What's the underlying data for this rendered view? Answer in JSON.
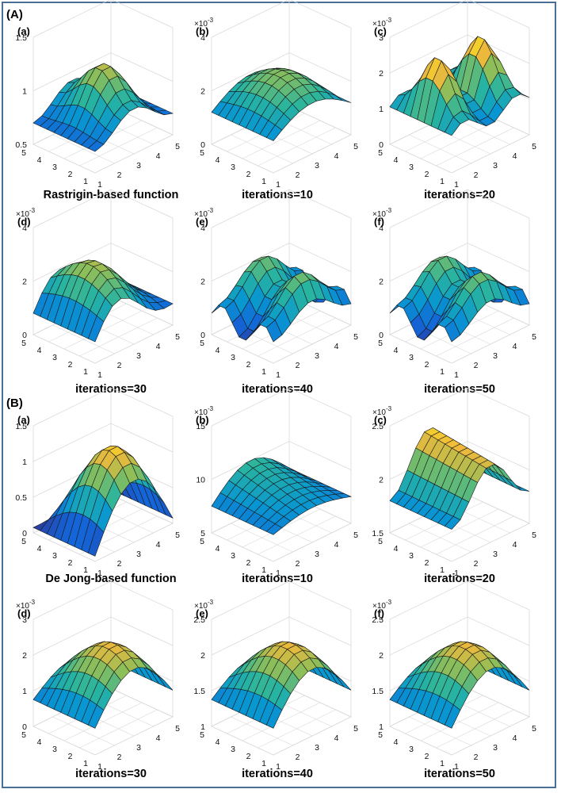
{
  "sections": [
    {
      "label": "(A)",
      "panels": [
        {
          "label": "(a)",
          "caption": "Rastrigin-based  function",
          "exp": null,
          "z_ticks": [
            "0.5",
            "1",
            "1.5"
          ],
          "z_range": [
            0,
            1.5
          ],
          "x_ticks": [
            "1",
            "2",
            "3",
            "4",
            "5"
          ],
          "y_ticks": [
            "1",
            "2",
            "3",
            "4",
            "5"
          ]
        },
        {
          "label": "(b)",
          "caption": "iterations=10",
          "exp": "×10",
          "exp_power": "-3",
          "z_ticks": [
            "0",
            "2",
            "4"
          ],
          "z_range": [
            0,
            4
          ],
          "x_ticks": [
            "1",
            "2",
            "3",
            "4",
            "5"
          ],
          "y_ticks": [
            "1",
            "2",
            "3",
            "4",
            "5"
          ]
        },
        {
          "label": "(c)",
          "caption": "iterations=20",
          "exp": "×10",
          "exp_power": "-3",
          "z_ticks": [
            "0",
            "1",
            "2",
            "3"
          ],
          "z_range": [
            0,
            3
          ],
          "x_ticks": [
            "1",
            "2",
            "3",
            "4",
            "5"
          ],
          "y_ticks": [
            "1",
            "2",
            "3",
            "4",
            "5"
          ]
        },
        {
          "label": "(d)",
          "caption": "iterations=30",
          "exp": "×10",
          "exp_power": "-3",
          "z_ticks": [
            "0",
            "2",
            "4"
          ],
          "z_range": [
            0,
            4
          ],
          "x_ticks": [
            "1",
            "2",
            "3",
            "4",
            "5"
          ],
          "y_ticks": [
            "1",
            "2",
            "3",
            "4",
            "5"
          ]
        },
        {
          "label": "(e)",
          "caption": "iterations=40",
          "exp": "×10",
          "exp_power": "-3",
          "z_ticks": [
            "0",
            "2",
            "4"
          ],
          "z_range": [
            0,
            4
          ],
          "x_ticks": [
            "1",
            "2",
            "3",
            "4",
            "5"
          ],
          "y_ticks": [
            "1",
            "2",
            "3",
            "4",
            "5"
          ]
        },
        {
          "label": "(f)",
          "caption": "iterations=50",
          "exp": "×10",
          "exp_power": "-3",
          "z_ticks": [
            "0",
            "2",
            "4"
          ],
          "z_range": [
            0,
            4
          ],
          "x_ticks": [
            "1",
            "2",
            "3",
            "4",
            "5"
          ],
          "y_ticks": [
            "1",
            "2",
            "3",
            "4",
            "5"
          ]
        }
      ]
    },
    {
      "label": "(B)",
      "panels": [
        {
          "label": "(a)",
          "caption": "De Jong-based  function",
          "exp": null,
          "z_ticks": [
            "0",
            "0.5",
            "1",
            "1.5"
          ],
          "z_range": [
            0,
            1.5
          ],
          "x_ticks": [
            "1",
            "2",
            "3",
            "4",
            "5"
          ],
          "y_ticks": [
            "1",
            "2",
            "3",
            "4",
            "5"
          ]
        },
        {
          "label": "(b)",
          "caption": "iterations=10",
          "exp": "×10",
          "exp_power": "-3",
          "z_ticks": [
            "5",
            "10",
            "15"
          ],
          "z_range": [
            3,
            17
          ],
          "x_ticks": [
            "1",
            "2",
            "3",
            "4",
            "5"
          ],
          "y_ticks": [
            "1",
            "2",
            "3",
            "4",
            "5"
          ]
        },
        {
          "label": "(c)",
          "caption": "iterations=20",
          "exp": "×10",
          "exp_power": "-3",
          "z_ticks": [
            "1.5",
            "2",
            "2.5"
          ],
          "z_range": [
            1.2,
            2.5
          ],
          "x_ticks": [
            "1",
            "2",
            "3",
            "4",
            "5"
          ],
          "y_ticks": [
            "1",
            "2",
            "3",
            "4",
            "5"
          ]
        },
        {
          "label": "(d)",
          "caption": "iterations=30",
          "exp": "×10",
          "exp_power": "-3",
          "z_ticks": [
            "0",
            "1",
            "2",
            "3"
          ],
          "z_range": [
            0,
            3
          ],
          "x_ticks": [
            "1",
            "2",
            "3",
            "4",
            "5"
          ],
          "y_ticks": [
            "1",
            "2",
            "3",
            "4",
            "5"
          ]
        },
        {
          "label": "(e)",
          "caption": "iterations=40",
          "exp": "×10",
          "exp_power": "-3",
          "z_ticks": [
            "1",
            "1.5",
            "2",
            "2.5"
          ],
          "z_range": [
            1,
            2.5
          ],
          "x_ticks": [
            "1",
            "2",
            "3",
            "4",
            "5"
          ],
          "y_ticks": [
            "1",
            "2",
            "3",
            "4",
            "5"
          ]
        },
        {
          "label": "(f)",
          "caption": "iterations=50",
          "exp": "×10",
          "exp_power": "-3",
          "z_ticks": [
            "1",
            "1.5",
            "2",
            "2.5"
          ],
          "z_range": [
            1,
            2.5
          ],
          "x_ticks": [
            "1",
            "2",
            "3",
            "4",
            "5"
          ],
          "y_ticks": [
            "1",
            "2",
            "3",
            "4",
            "5"
          ]
        }
      ]
    }
  ],
  "chart_data": [
    {
      "type": "surface",
      "title": "(A)(a) Rastrigin-based  function",
      "surface": "rastrigin",
      "x_range": [
        1,
        5
      ],
      "y_range": [
        1,
        5
      ],
      "zlim": [
        0,
        1.5
      ],
      "z_scale": "1"
    },
    {
      "type": "surface",
      "title": "(A)(b) iterations=10",
      "surface": "rastrigin-iter10",
      "x_range": [
        1,
        5
      ],
      "y_range": [
        1,
        5
      ],
      "zlim": [
        0,
        4
      ],
      "z_scale": "1e-3"
    },
    {
      "type": "surface",
      "title": "(A)(c) iterations=20",
      "surface": "rastrigin-iter20",
      "x_range": [
        1,
        5
      ],
      "y_range": [
        1,
        5
      ],
      "zlim": [
        0,
        3
      ],
      "z_scale": "1e-3"
    },
    {
      "type": "surface",
      "title": "(A)(d) iterations=30",
      "surface": "rastrigin-iter30",
      "x_range": [
        1,
        5
      ],
      "y_range": [
        1,
        5
      ],
      "zlim": [
        0,
        4
      ],
      "z_scale": "1e-3"
    },
    {
      "type": "surface",
      "title": "(A)(e) iterations=40",
      "surface": "rastrigin-iter40",
      "x_range": [
        1,
        5
      ],
      "y_range": [
        1,
        5
      ],
      "zlim": [
        0,
        4
      ],
      "z_scale": "1e-3"
    },
    {
      "type": "surface",
      "title": "(A)(f) iterations=50",
      "surface": "rastrigin-iter50",
      "x_range": [
        1,
        5
      ],
      "y_range": [
        1,
        5
      ],
      "zlim": [
        0,
        4
      ],
      "z_scale": "1e-3"
    },
    {
      "type": "surface",
      "title": "(B)(a) De Jong-based  function",
      "surface": "dejong",
      "x_range": [
        1,
        5
      ],
      "y_range": [
        1,
        5
      ],
      "zlim": [
        0,
        1.5
      ],
      "z_scale": "1"
    },
    {
      "type": "surface",
      "title": "(B)(b) iterations=10",
      "surface": "dejong-iter10",
      "x_range": [
        1,
        5
      ],
      "y_range": [
        1,
        5
      ],
      "zlim": [
        3,
        17
      ],
      "z_scale": "1e-3"
    },
    {
      "type": "surface",
      "title": "(B)(c) iterations=20",
      "surface": "dejong-iter20",
      "x_range": [
        1,
        5
      ],
      "y_range": [
        1,
        5
      ],
      "zlim": [
        1.2,
        2.5
      ],
      "z_scale": "1e-3"
    },
    {
      "type": "surface",
      "title": "(B)(d) iterations=30",
      "surface": "dejong-iter30",
      "x_range": [
        1,
        5
      ],
      "y_range": [
        1,
        5
      ],
      "zlim": [
        0,
        3
      ],
      "z_scale": "1e-3"
    },
    {
      "type": "surface",
      "title": "(B)(e) iterations=40",
      "surface": "dejong-iter40",
      "x_range": [
        1,
        5
      ],
      "y_range": [
        1,
        5
      ],
      "zlim": [
        1,
        2.5
      ],
      "z_scale": "1e-3"
    },
    {
      "type": "surface",
      "title": "(B)(f) iterations=50",
      "surface": "dejong-iter50",
      "x_range": [
        1,
        5
      ],
      "y_range": [
        1,
        5
      ],
      "zlim": [
        1,
        2.5
      ],
      "z_scale": "1e-3"
    }
  ]
}
